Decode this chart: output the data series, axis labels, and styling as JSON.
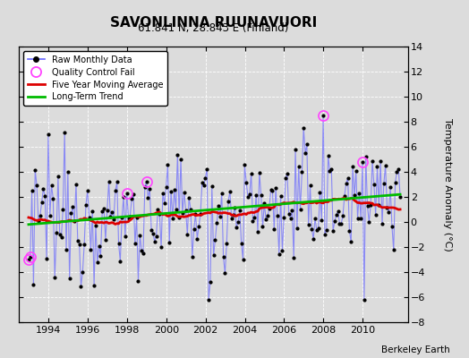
{
  "title": "SAVONLINNA RUUNAVUORI",
  "subtitle": "61.841 N, 28.843 E (Finland)",
  "ylabel": "Temperature Anomaly (°C)",
  "credit": "Berkeley Earth",
  "xlim": [
    1992.5,
    2012.3
  ],
  "ylim": [
    -8,
    14
  ],
  "yticks": [
    -8,
    -6,
    -4,
    -2,
    0,
    2,
    4,
    6,
    8,
    10,
    12,
    14
  ],
  "xticks": [
    1994,
    1996,
    1998,
    2000,
    2002,
    2004,
    2006,
    2008,
    2010
  ],
  "bg_color": "#dcdcdc",
  "plot_bg": "#dcdcdc",
  "raw_color": "#6666ff",
  "raw_line_alpha": 0.7,
  "ma_color": "#dd0000",
  "trend_color": "#00bb00",
  "qc_color": "#ff44ff",
  "dot_color": "#000000"
}
